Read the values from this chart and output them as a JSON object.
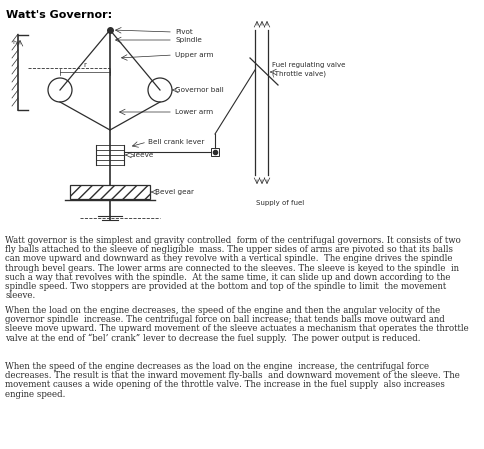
{
  "title": "Watt's Governor:",
  "paragraph1": "Watt governor is the simplest and gravity controlled  form of the centrifugal governors. It consists of two\nfly balls attached to the sleeve of negligible  mass. The upper sides of arms are pivoted so that its balls\ncan move upward and downward as they revolve with a vertical spindle.  The engine drives the spindle\nthrough bevel gears. The lower arms are connected to the sleeves. The sleeve is keyed to the spindle  in\nsuch a way that revolves with the spindle.  At the same time, it can slide up and down according to the\nspindle speed. Two stoppers are provided at the bottom and top of the spindle to limit  the movement\nsleeve.",
  "paragraph2": "When the load on the engine decreases, the speed of the engine and then the angular velocity of the\ngovernor spindle  increase. The centrifugal force on ball increase; that tends balls move outward and\nsleeve move upward. The upward movement of the sleeve actuates a mechanism that operates the throttle\nvalve at the end of “bel’ crank” lever to decrease the fuel supply.  The power output is reduced.",
  "paragraph3": "When the speed of the engine decreases as the load on the engine  increase, the centrifugal force\ndecreases. The result is that the inward movement fly-balls  and downward movement of the sleeve. The\nmovement causes a wide opening of the throttle valve. The increase in the fuel supply  also increases\nengine speed.",
  "text_color": "#2d2d2d",
  "diagram_color": "#2d2d2d",
  "title_color": "#000000"
}
